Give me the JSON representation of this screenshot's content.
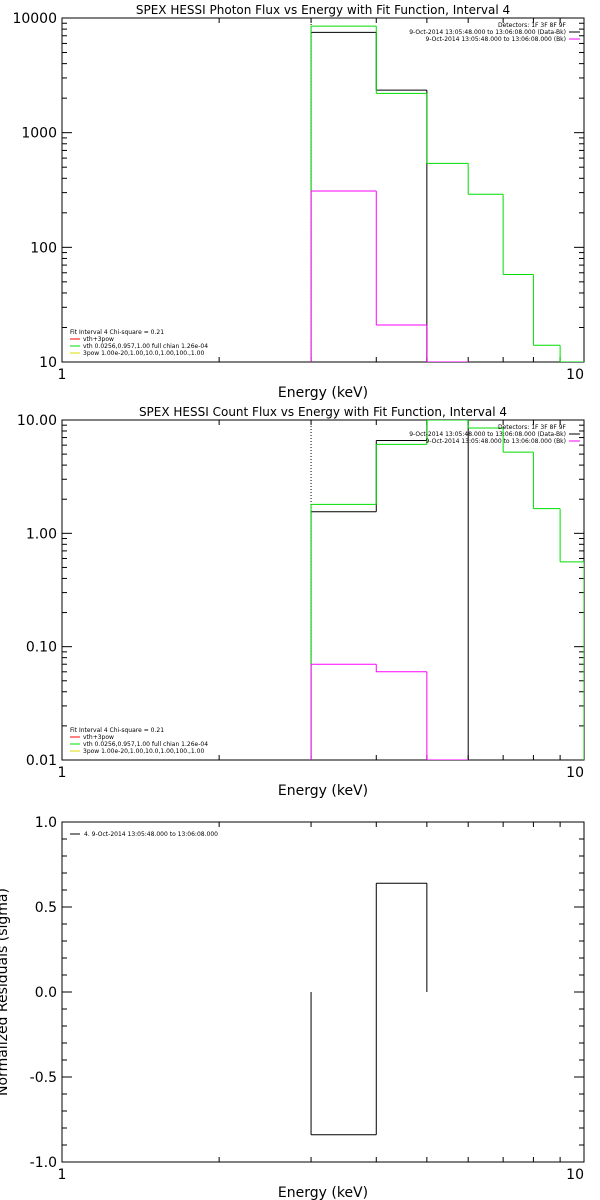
{
  "chart_data": [
    {
      "type": "line",
      "title": "SPEX HESSI Photon Flux vs Energy with Fit Function, Interval 4",
      "xlabel": "Energy (keV)",
      "ylabel": "",
      "xscale": "log",
      "yscale": "log",
      "xlim": [
        1,
        10
      ],
      "ylim": [
        10,
        10000
      ],
      "xticks": [
        1,
        10
      ],
      "xtick_labels": [
        "1",
        "10"
      ],
      "yticks": [
        10,
        100,
        1000,
        10000
      ],
      "ytick_labels": [
        "10",
        "100",
        "1000",
        "10000"
      ],
      "vline_x": 3,
      "legend_location": "top-right",
      "legend_lines": [
        {
          "text": "Detectors: 1F 3F 8F 9F",
          "color": null
        },
        {
          "text": "9-Oct-2014 13:05:48.000 to 13:06:08.000 (Data-Bk)",
          "color": "#000000"
        },
        {
          "text": "9-Oct-2014 13:05:48.000 to 13:06:08.000 (Bk)",
          "color": "#ff00ff"
        }
      ],
      "fit_legend_location": "bottom-left",
      "fit_lines": [
        {
          "text": "Fit Interval 4   Chi-square = 0.21",
          "color": null
        },
        {
          "text": "vth+3pow",
          "color": "#ff0000"
        },
        {
          "text": "vth 0.0256,0.957,1.00  full chian 1.26e-04",
          "color": "#00dd00"
        },
        {
          "text": "3pow 1.00e-20,1.00,10.0,1.00,100.,1.00",
          "color": "#dddd00"
        }
      ],
      "series": [
        {
          "color": "#000000",
          "bins": [
            [
              3,
              4,
              7500
            ],
            [
              4,
              5,
              2350
            ]
          ]
        },
        {
          "color": "#00dd00",
          "bins": [
            [
              3,
              4,
              8500
            ],
            [
              4,
              5,
              2200
            ],
            [
              5,
              6,
              540
            ],
            [
              6,
              7,
              290
            ],
            [
              7,
              8,
              58
            ],
            [
              8,
              9,
              14
            ],
            [
              9,
              10,
              7
            ]
          ]
        },
        {
          "color": "#ff00ff",
          "bins": [
            [
              3,
              4,
              310
            ],
            [
              4,
              5,
              21
            ],
            [
              5,
              6,
              5
            ]
          ]
        }
      ]
    },
    {
      "type": "line",
      "title": "SPEX HESSI Count Flux vs Energy with Fit Function, Interval 4",
      "xlabel": "Energy (keV)",
      "ylabel": "",
      "xscale": "log",
      "yscale": "log",
      "xlim": [
        1,
        10
      ],
      "ylim": [
        0.01,
        10
      ],
      "xticks": [
        1,
        10
      ],
      "xtick_labels": [
        "1",
        "10"
      ],
      "yticks": [
        0.01,
        0.1,
        1,
        10
      ],
      "ytick_labels": [
        "0.01",
        "0.10",
        "1.00",
        "10.00"
      ],
      "vline_x": 3,
      "legend_location": "top-right",
      "legend_lines": [
        {
          "text": "Detectors: 1F 3F 8F 9F",
          "color": null
        },
        {
          "text": "9-Oct-2014 13:05:48.000 to 13:06:08.000 (Data-Bk)",
          "color": "#000000"
        },
        {
          "text": "9-Oct-2014 13:05:48.000 to 13:06:08.000 (Bk)",
          "color": "#ff00ff"
        }
      ],
      "fit_legend_location": "bottom-left",
      "fit_lines": [
        {
          "text": "Fit Interval 4   Chi-square = 0.21",
          "color": null
        },
        {
          "text": "vth+3pow",
          "color": "#ff0000"
        },
        {
          "text": "vth 0.0256,0.957,1.00  full chian 1.26e-04",
          "color": "#00dd00"
        },
        {
          "text": "3pow 1.00e-20,1.00,10.0,1.00,100.,1.00",
          "color": "#dddd00"
        }
      ],
      "series": [
        {
          "color": "#000000",
          "bins": [
            [
              3,
              4,
              1.55
            ],
            [
              4,
              5,
              6.6
            ],
            [
              5,
              6,
              10
            ]
          ]
        },
        {
          "color": "#00dd00",
          "bins": [
            [
              3,
              4,
              1.8
            ],
            [
              4,
              5,
              6.1
            ],
            [
              5,
              6,
              10
            ],
            [
              6,
              7,
              8.5
            ],
            [
              7,
              8,
              5.2
            ],
            [
              8,
              9,
              1.65
            ],
            [
              9,
              10,
              0.56
            ]
          ]
        },
        {
          "color": "#ff00ff",
          "bins": [
            [
              3,
              4,
              0.07
            ],
            [
              4,
              5,
              0.06
            ],
            [
              5,
              6,
              0.005
            ]
          ]
        }
      ]
    },
    {
      "type": "line",
      "title": "",
      "xlabel": "Energy (keV)",
      "ylabel": "Normalized Residuals (sigma)",
      "xscale": "log",
      "yscale": "linear",
      "xlim": [
        1,
        10
      ],
      "ylim": [
        -1.0,
        1.0
      ],
      "xticks": [
        1,
        10
      ],
      "xtick_labels": [
        "1",
        "10"
      ],
      "yticks": [
        -1.0,
        -0.5,
        0.0,
        0.5,
        1.0
      ],
      "ytick_labels": [
        "-1.0",
        "-0.5",
        "0.0",
        "0.5",
        "1.0"
      ],
      "legend_location": "top-left",
      "legend_lines": [
        {
          "text": "4.  9-Oct-2014 13:05:48.000 to 13:06:08.000",
          "color": "#000000"
        }
      ],
      "series": [
        {
          "color": "#000000",
          "bins": [
            [
              3,
              4,
              -0.84
            ],
            [
              4,
              5,
              0.64
            ]
          ]
        }
      ]
    }
  ]
}
